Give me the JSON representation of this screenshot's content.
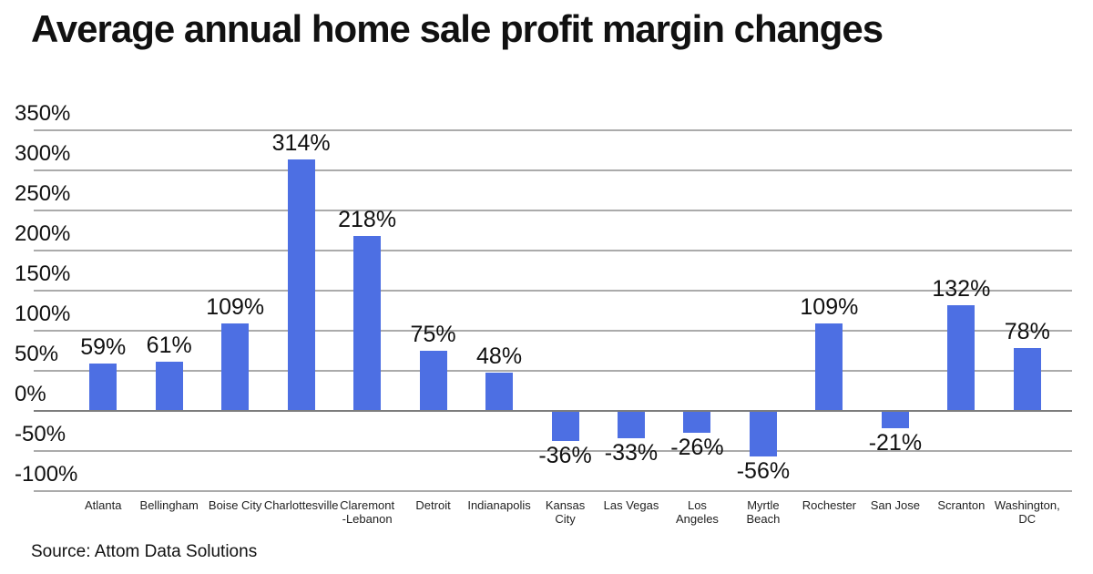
{
  "header": {
    "title": "Average annual home sale profit margin changes"
  },
  "source_note": "Source: Attom Data Solutions",
  "colors": {
    "bar": "#4d6fe3",
    "gridline": "#ababab",
    "zero_line": "#7d7d7d",
    "text": "#111111"
  },
  "chart_data": {
    "type": "bar",
    "title": "Average annual home sale profit margin changes",
    "categories": [
      "Atlanta",
      "Bellingham",
      "Boise City",
      "Charlottesville",
      "Claremont\n-Lebanon",
      "Detroit",
      "Indianapolis",
      "Kansas\nCity",
      "Las Vegas",
      "Los\nAngeles",
      "Myrtle\nBeach",
      "Rochester",
      "San Jose",
      "Scranton",
      "Washington,\nDC"
    ],
    "values": [
      59,
      61,
      109,
      314,
      218,
      75,
      48,
      -36,
      -33,
      -26,
      -56,
      109,
      -21,
      132,
      78
    ],
    "data_labels": [
      "59%",
      "61%",
      "109%",
      "314%",
      "218%",
      "75%",
      "48%",
      "-36%",
      "-33%",
      "-26%",
      "-56%",
      "109%",
      "-21%",
      "132%",
      "78%"
    ],
    "xlabel": "",
    "ylabel": "",
    "y_ticks": [
      {
        "value": 350,
        "label": "350%"
      },
      {
        "value": 300,
        "label": "300%"
      },
      {
        "value": 250,
        "label": "250%"
      },
      {
        "value": 200,
        "label": "200%"
      },
      {
        "value": 150,
        "label": "150%"
      },
      {
        "value": 100,
        "label": "100%"
      },
      {
        "value": 50,
        "label": "50%"
      },
      {
        "value": 0,
        "label": "0%"
      },
      {
        "value": -50,
        "label": "-50%"
      },
      {
        "value": -100,
        "label": "-100%"
      }
    ],
    "ylim": [
      -100,
      350
    ],
    "grid": true,
    "legend": false,
    "source": "Source: Attom Data Solutions",
    "bar_color": "#4d6fe3"
  }
}
